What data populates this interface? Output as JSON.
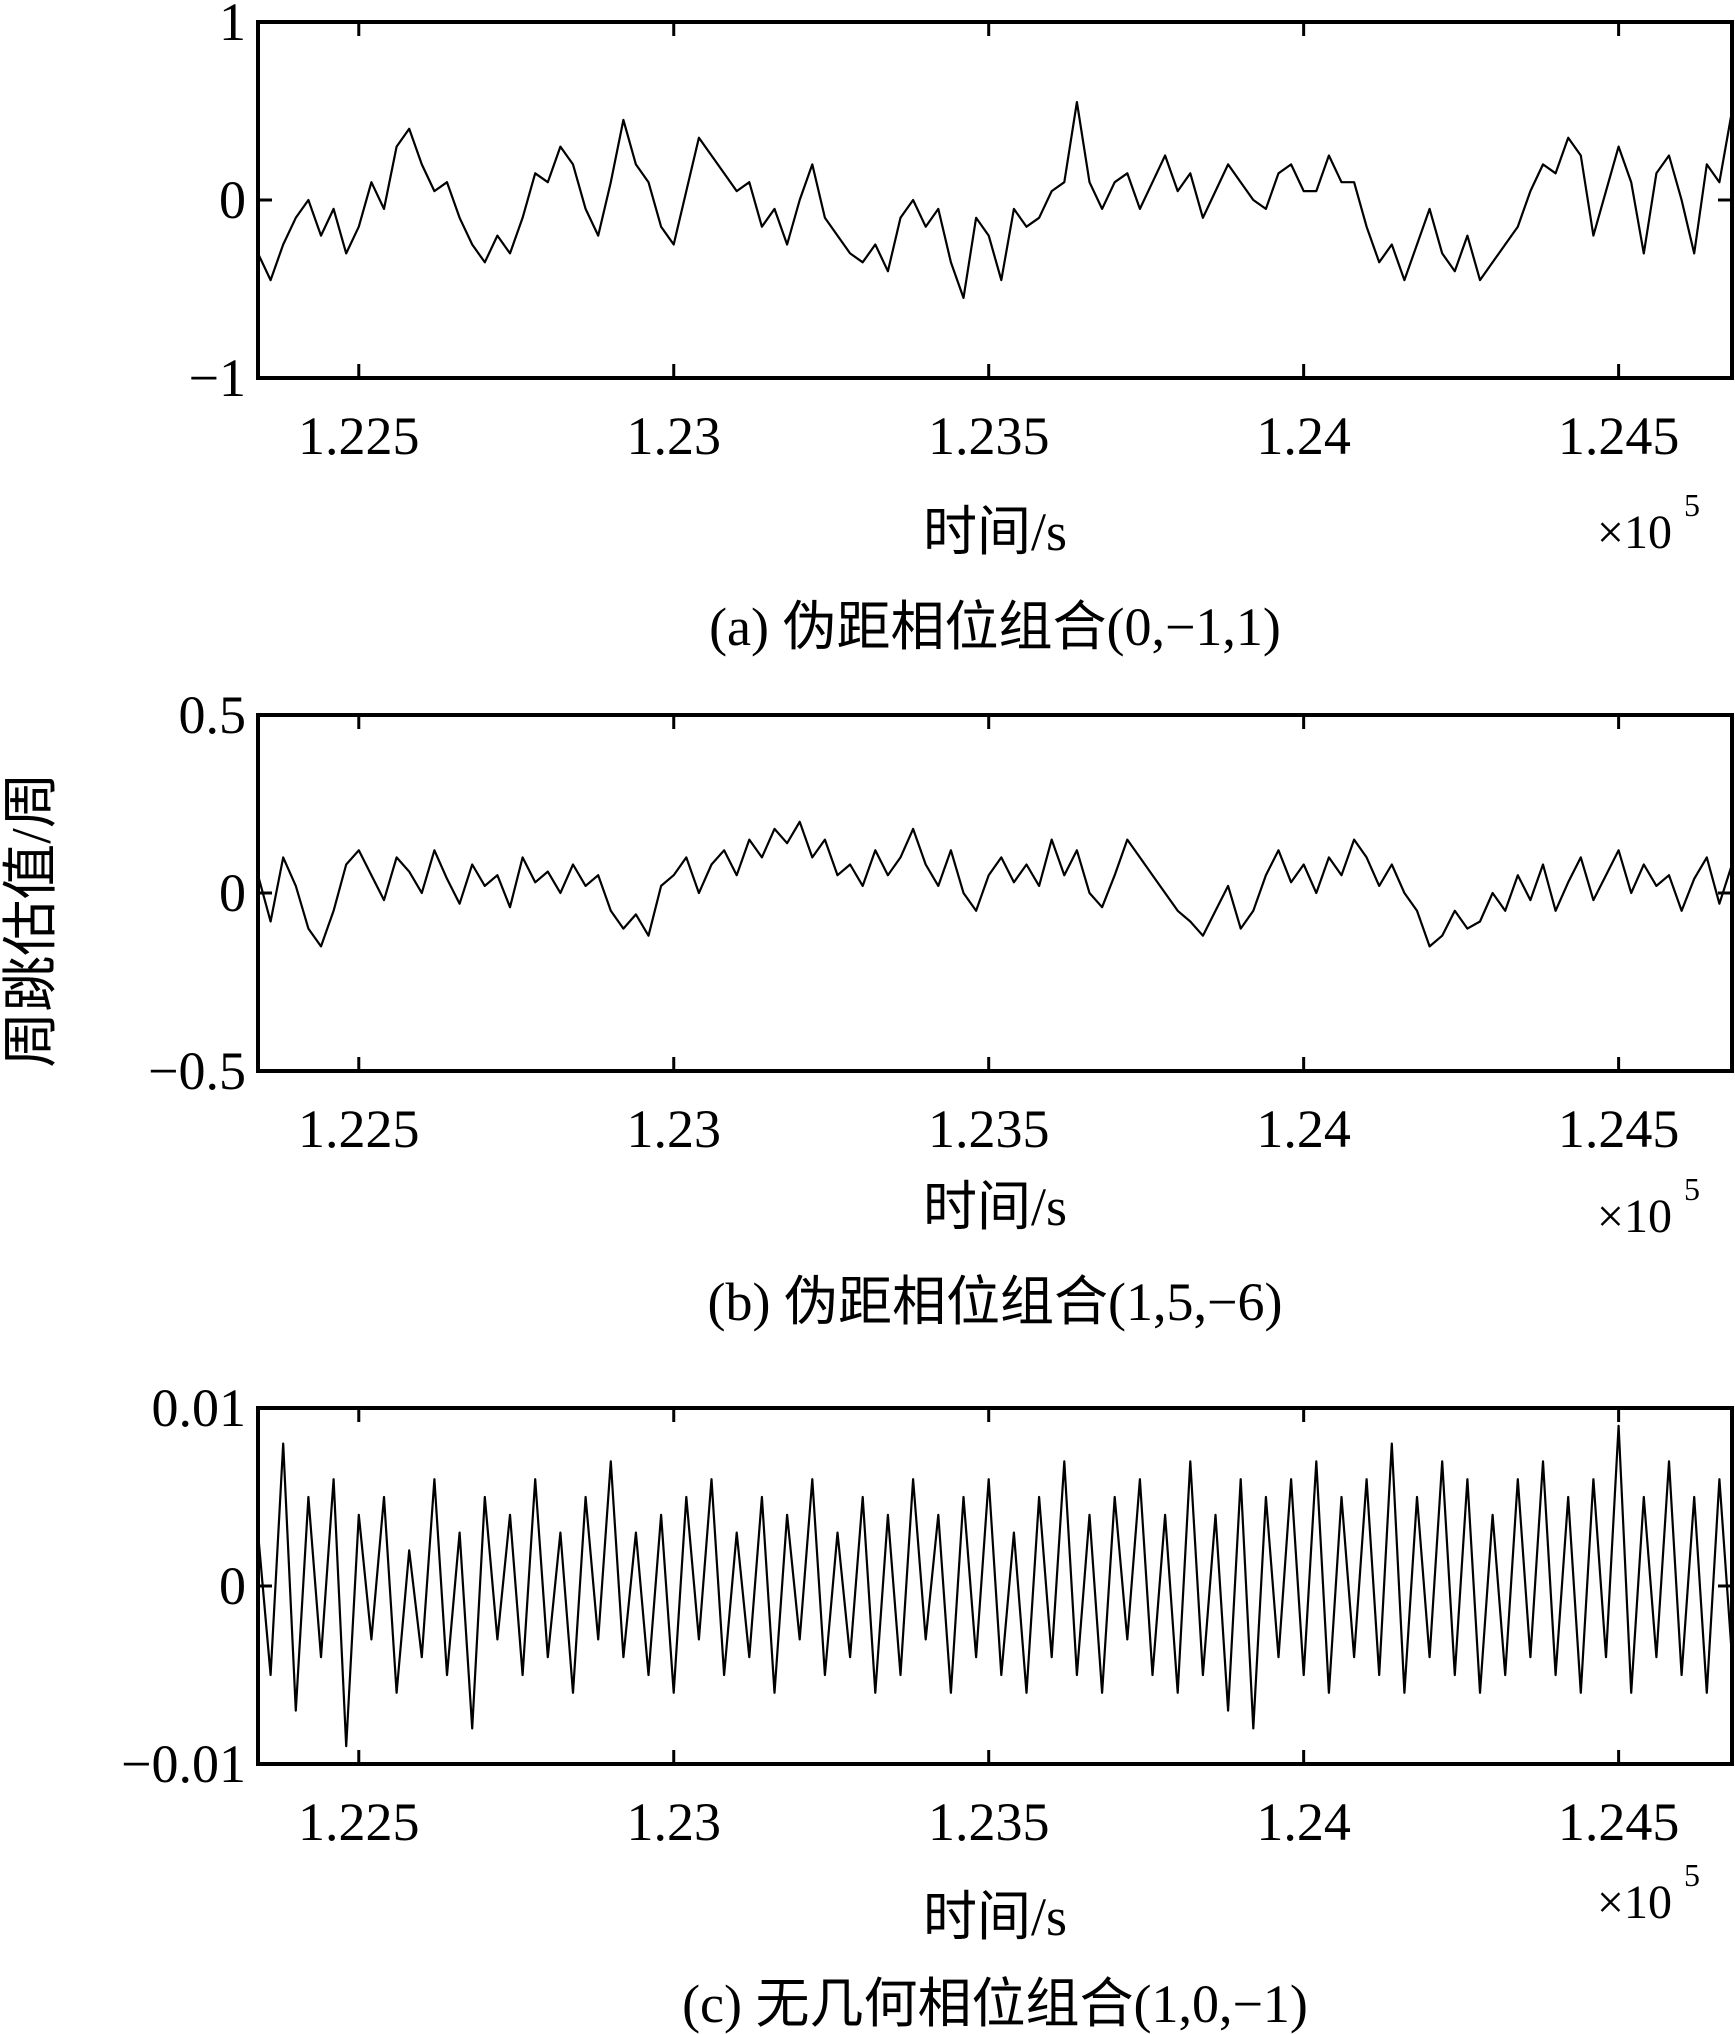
{
  "figure": {
    "ylabel": "周跳估值/周",
    "x_multiplier": "×10",
    "x_multiplier_exp": "5"
  },
  "chart_data": [
    {
      "type": "line",
      "id": "a",
      "caption": "(a) 伪距相位组合(0,−1,1)",
      "xlabel": "时间/s",
      "xlim": [
        1.2234,
        1.2468
      ],
      "ylim": [
        -1,
        1
      ],
      "xticks": [
        1.225,
        1.23,
        1.235,
        1.24,
        1.245
      ],
      "xtick_labels": [
        "1.225",
        "1.23",
        "1.235",
        "1.24",
        "1.245"
      ],
      "yticks": [
        -1,
        0,
        1
      ],
      "ytick_labels": [
        "−1",
        "0",
        "1"
      ],
      "series": [
        {
          "color": "#000000",
          "x": [
            1.2234,
            1.2236,
            1.2238,
            1.224,
            1.2242,
            1.2244,
            1.2246,
            1.2248,
            1.225,
            1.2252,
            1.2254,
            1.2256,
            1.2258,
            1.226,
            1.2262,
            1.2264,
            1.2266,
            1.2268,
            1.227,
            1.2272,
            1.2274,
            1.2276,
            1.2278,
            1.228,
            1.2282,
            1.2284,
            1.2286,
            1.2288,
            1.229,
            1.2292,
            1.2294,
            1.2296,
            1.2298,
            1.23,
            1.2302,
            1.2304,
            1.2306,
            1.2308,
            1.231,
            1.2312,
            1.2314,
            1.2316,
            1.2318,
            1.232,
            1.2322,
            1.2324,
            1.2326,
            1.2328,
            1.233,
            1.2332,
            1.2334,
            1.2336,
            1.2338,
            1.234,
            1.2342,
            1.2344,
            1.2346,
            1.2348,
            1.235,
            1.2352,
            1.2354,
            1.2356,
            1.2358,
            1.236,
            1.2362,
            1.2364,
            1.2366,
            1.2368,
            1.237,
            1.2372,
            1.2374,
            1.2376,
            1.2378,
            1.238,
            1.2382,
            1.2384,
            1.2386,
            1.2388,
            1.239,
            1.2392,
            1.2394,
            1.2396,
            1.2398,
            1.24,
            1.2402,
            1.2404,
            1.2406,
            1.2408,
            1.241,
            1.2412,
            1.2414,
            1.2416,
            1.2418,
            1.242,
            1.2422,
            1.2424,
            1.2426,
            1.2428,
            1.243,
            1.2432,
            1.2434,
            1.2436,
            1.2438,
            1.244,
            1.2442,
            1.2444,
            1.2446,
            1.2448,
            1.245,
            1.2452,
            1.2454,
            1.2456,
            1.2458,
            1.246,
            1.2462,
            1.2464,
            1.2466,
            1.2468
          ],
          "y": [
            -0.3,
            -0.45,
            -0.25,
            -0.1,
            0.0,
            -0.2,
            -0.05,
            -0.3,
            -0.15,
            0.1,
            -0.05,
            0.3,
            0.4,
            0.2,
            0.05,
            0.1,
            -0.1,
            -0.25,
            -0.35,
            -0.2,
            -0.3,
            -0.1,
            0.15,
            0.1,
            0.3,
            0.2,
            -0.05,
            -0.2,
            0.1,
            0.45,
            0.2,
            0.1,
            -0.15,
            -0.25,
            0.05,
            0.35,
            0.25,
            0.15,
            0.05,
            0.1,
            -0.15,
            -0.05,
            -0.25,
            0.0,
            0.2,
            -0.1,
            -0.2,
            -0.3,
            -0.35,
            -0.25,
            -0.4,
            -0.1,
            0.0,
            -0.15,
            -0.05,
            -0.35,
            -0.55,
            -0.1,
            -0.2,
            -0.45,
            -0.05,
            -0.15,
            -0.1,
            0.05,
            0.1,
            0.55,
            0.1,
            -0.05,
            0.1,
            0.15,
            -0.05,
            0.1,
            0.25,
            0.05,
            0.15,
            -0.1,
            0.05,
            0.2,
            0.1,
            0.0,
            -0.05,
            0.15,
            0.2,
            0.05,
            0.05,
            0.25,
            0.1,
            0.1,
            -0.15,
            -0.35,
            -0.25,
            -0.45,
            -0.25,
            -0.05,
            -0.3,
            -0.4,
            -0.2,
            -0.45,
            -0.35,
            -0.25,
            -0.15,
            0.05,
            0.2,
            0.15,
            0.35,
            0.25,
            -0.2,
            0.05,
            0.3,
            0.1,
            -0.3,
            0.15,
            0.25,
            0.0,
            -0.3,
            0.2,
            0.1,
            0.5
          ]
        }
      ]
    },
    {
      "type": "line",
      "id": "b",
      "caption": "(b) 伪距相位组合(1,5,−6)",
      "xlabel": "时间/s",
      "xlim": [
        1.2234,
        1.2468
      ],
      "ylim": [
        -0.5,
        0.5
      ],
      "xticks": [
        1.225,
        1.23,
        1.235,
        1.24,
        1.245
      ],
      "xtick_labels": [
        "1.225",
        "1.23",
        "1.235",
        "1.24",
        "1.245"
      ],
      "yticks": [
        -0.5,
        0,
        0.5
      ],
      "ytick_labels": [
        "−0.5",
        "0",
        "0.5"
      ],
      "series": [
        {
          "color": "#000000",
          "x": [
            1.2234,
            1.2236,
            1.2238,
            1.224,
            1.2242,
            1.2244,
            1.2246,
            1.2248,
            1.225,
            1.2252,
            1.2254,
            1.2256,
            1.2258,
            1.226,
            1.2262,
            1.2264,
            1.2266,
            1.2268,
            1.227,
            1.2272,
            1.2274,
            1.2276,
            1.2278,
            1.228,
            1.2282,
            1.2284,
            1.2286,
            1.2288,
            1.229,
            1.2292,
            1.2294,
            1.2296,
            1.2298,
            1.23,
            1.2302,
            1.2304,
            1.2306,
            1.2308,
            1.231,
            1.2312,
            1.2314,
            1.2316,
            1.2318,
            1.232,
            1.2322,
            1.2324,
            1.2326,
            1.2328,
            1.233,
            1.2332,
            1.2334,
            1.2336,
            1.2338,
            1.234,
            1.2342,
            1.2344,
            1.2346,
            1.2348,
            1.235,
            1.2352,
            1.2354,
            1.2356,
            1.2358,
            1.236,
            1.2362,
            1.2364,
            1.2366,
            1.2368,
            1.237,
            1.2372,
            1.2374,
            1.2376,
            1.2378,
            1.238,
            1.2382,
            1.2384,
            1.2386,
            1.2388,
            1.239,
            1.2392,
            1.2394,
            1.2396,
            1.2398,
            1.24,
            1.2402,
            1.2404,
            1.2406,
            1.2408,
            1.241,
            1.2412,
            1.2414,
            1.2416,
            1.2418,
            1.242,
            1.2422,
            1.2424,
            1.2426,
            1.2428,
            1.243,
            1.2432,
            1.2434,
            1.2436,
            1.2438,
            1.244,
            1.2442,
            1.2444,
            1.2446,
            1.2448,
            1.245,
            1.2452,
            1.2454,
            1.2456,
            1.2458,
            1.246,
            1.2462,
            1.2464,
            1.2466,
            1.2468
          ],
          "y": [
            0.05,
            -0.08,
            0.1,
            0.02,
            -0.1,
            -0.15,
            -0.05,
            0.08,
            0.12,
            0.05,
            -0.02,
            0.1,
            0.06,
            0.0,
            0.12,
            0.04,
            -0.03,
            0.08,
            0.02,
            0.05,
            -0.04,
            0.1,
            0.03,
            0.06,
            0.0,
            0.08,
            0.02,
            0.05,
            -0.05,
            -0.1,
            -0.06,
            -0.12,
            0.02,
            0.05,
            0.1,
            0.0,
            0.08,
            0.12,
            0.05,
            0.15,
            0.1,
            0.18,
            0.14,
            0.2,
            0.1,
            0.15,
            0.05,
            0.08,
            0.02,
            0.12,
            0.05,
            0.1,
            0.18,
            0.08,
            0.02,
            0.12,
            0.0,
            -0.05,
            0.05,
            0.1,
            0.03,
            0.08,
            0.02,
            0.15,
            0.05,
            0.12,
            0.0,
            -0.04,
            0.05,
            0.15,
            0.1,
            0.05,
            0.0,
            -0.05,
            -0.08,
            -0.12,
            -0.05,
            0.02,
            -0.1,
            -0.05,
            0.05,
            0.12,
            0.03,
            0.08,
            0.0,
            0.1,
            0.05,
            0.15,
            0.1,
            0.02,
            0.08,
            0.0,
            -0.05,
            -0.15,
            -0.12,
            -0.05,
            -0.1,
            -0.08,
            0.0,
            -0.05,
            0.05,
            -0.02,
            0.08,
            -0.05,
            0.03,
            0.1,
            -0.02,
            0.05,
            0.12,
            0.0,
            0.08,
            0.02,
            0.05,
            -0.05,
            0.04,
            0.1,
            -0.03,
            0.08
          ]
        }
      ]
    },
    {
      "type": "line",
      "id": "c",
      "caption": "(c) 无几何相位组合(1,0,−1)",
      "xlabel": "时间/s",
      "xlim": [
        1.2234,
        1.2468
      ],
      "ylim": [
        -0.01,
        0.01
      ],
      "xticks": [
        1.225,
        1.23,
        1.235,
        1.24,
        1.245
      ],
      "xtick_labels": [
        "1.225",
        "1.23",
        "1.235",
        "1.24",
        "1.245"
      ],
      "yticks": [
        -0.01,
        0,
        0.01
      ],
      "ytick_labels": [
        "−0.01",
        "0",
        "0.01"
      ],
      "series": [
        {
          "color": "#000000",
          "x": [
            1.2234,
            1.2236,
            1.2238,
            1.224,
            1.2242,
            1.2244,
            1.2246,
            1.2248,
            1.225,
            1.2252,
            1.2254,
            1.2256,
            1.2258,
            1.226,
            1.2262,
            1.2264,
            1.2266,
            1.2268,
            1.227,
            1.2272,
            1.2274,
            1.2276,
            1.2278,
            1.228,
            1.2282,
            1.2284,
            1.2286,
            1.2288,
            1.229,
            1.2292,
            1.2294,
            1.2296,
            1.2298,
            1.23,
            1.2302,
            1.2304,
            1.2306,
            1.2308,
            1.231,
            1.2312,
            1.2314,
            1.2316,
            1.2318,
            1.232,
            1.2322,
            1.2324,
            1.2326,
            1.2328,
            1.233,
            1.2332,
            1.2334,
            1.2336,
            1.2338,
            1.234,
            1.2342,
            1.2344,
            1.2346,
            1.2348,
            1.235,
            1.2352,
            1.2354,
            1.2356,
            1.2358,
            1.236,
            1.2362,
            1.2364,
            1.2366,
            1.2368,
            1.237,
            1.2372,
            1.2374,
            1.2376,
            1.2378,
            1.238,
            1.2382,
            1.2384,
            1.2386,
            1.2388,
            1.239,
            1.2392,
            1.2394,
            1.2396,
            1.2398,
            1.24,
            1.2402,
            1.2404,
            1.2406,
            1.2408,
            1.241,
            1.2412,
            1.2414,
            1.2416,
            1.2418,
            1.242,
            1.2422,
            1.2424,
            1.2426,
            1.2428,
            1.243,
            1.2432,
            1.2434,
            1.2436,
            1.2438,
            1.244,
            1.2442,
            1.2444,
            1.2446,
            1.2448,
            1.245,
            1.2452,
            1.2454,
            1.2456,
            1.2458,
            1.246,
            1.2462,
            1.2464,
            1.2466,
            1.2468
          ],
          "y": [
            0.003,
            -0.005,
            0.008,
            -0.007,
            0.005,
            -0.004,
            0.006,
            -0.009,
            0.004,
            -0.003,
            0.005,
            -0.006,
            0.002,
            -0.004,
            0.006,
            -0.005,
            0.003,
            -0.008,
            0.005,
            -0.003,
            0.004,
            -0.005,
            0.006,
            -0.004,
            0.003,
            -0.006,
            0.005,
            -0.003,
            0.007,
            -0.004,
            0.003,
            -0.005,
            0.004,
            -0.006,
            0.005,
            -0.003,
            0.006,
            -0.005,
            0.003,
            -0.004,
            0.005,
            -0.006,
            0.004,
            -0.003,
            0.006,
            -0.005,
            0.003,
            -0.004,
            0.005,
            -0.006,
            0.004,
            -0.005,
            0.006,
            -0.003,
            0.004,
            -0.006,
            0.005,
            -0.004,
            0.006,
            -0.005,
            0.003,
            -0.006,
            0.005,
            -0.004,
            0.007,
            -0.005,
            0.004,
            -0.006,
            0.005,
            -0.003,
            0.006,
            -0.005,
            0.004,
            -0.006,
            0.007,
            -0.005,
            0.004,
            -0.007,
            0.006,
            -0.008,
            0.005,
            -0.004,
            0.006,
            -0.005,
            0.007,
            -0.006,
            0.005,
            -0.004,
            0.006,
            -0.005,
            0.008,
            -0.006,
            0.005,
            -0.004,
            0.007,
            -0.005,
            0.006,
            -0.006,
            0.004,
            -0.005,
            0.006,
            -0.004,
            0.007,
            -0.005,
            0.005,
            -0.006,
            0.006,
            -0.004,
            0.009,
            -0.006,
            0.005,
            -0.004,
            0.007,
            -0.005,
            0.005,
            -0.006,
            0.006,
            -0.004
          ]
        }
      ]
    }
  ]
}
